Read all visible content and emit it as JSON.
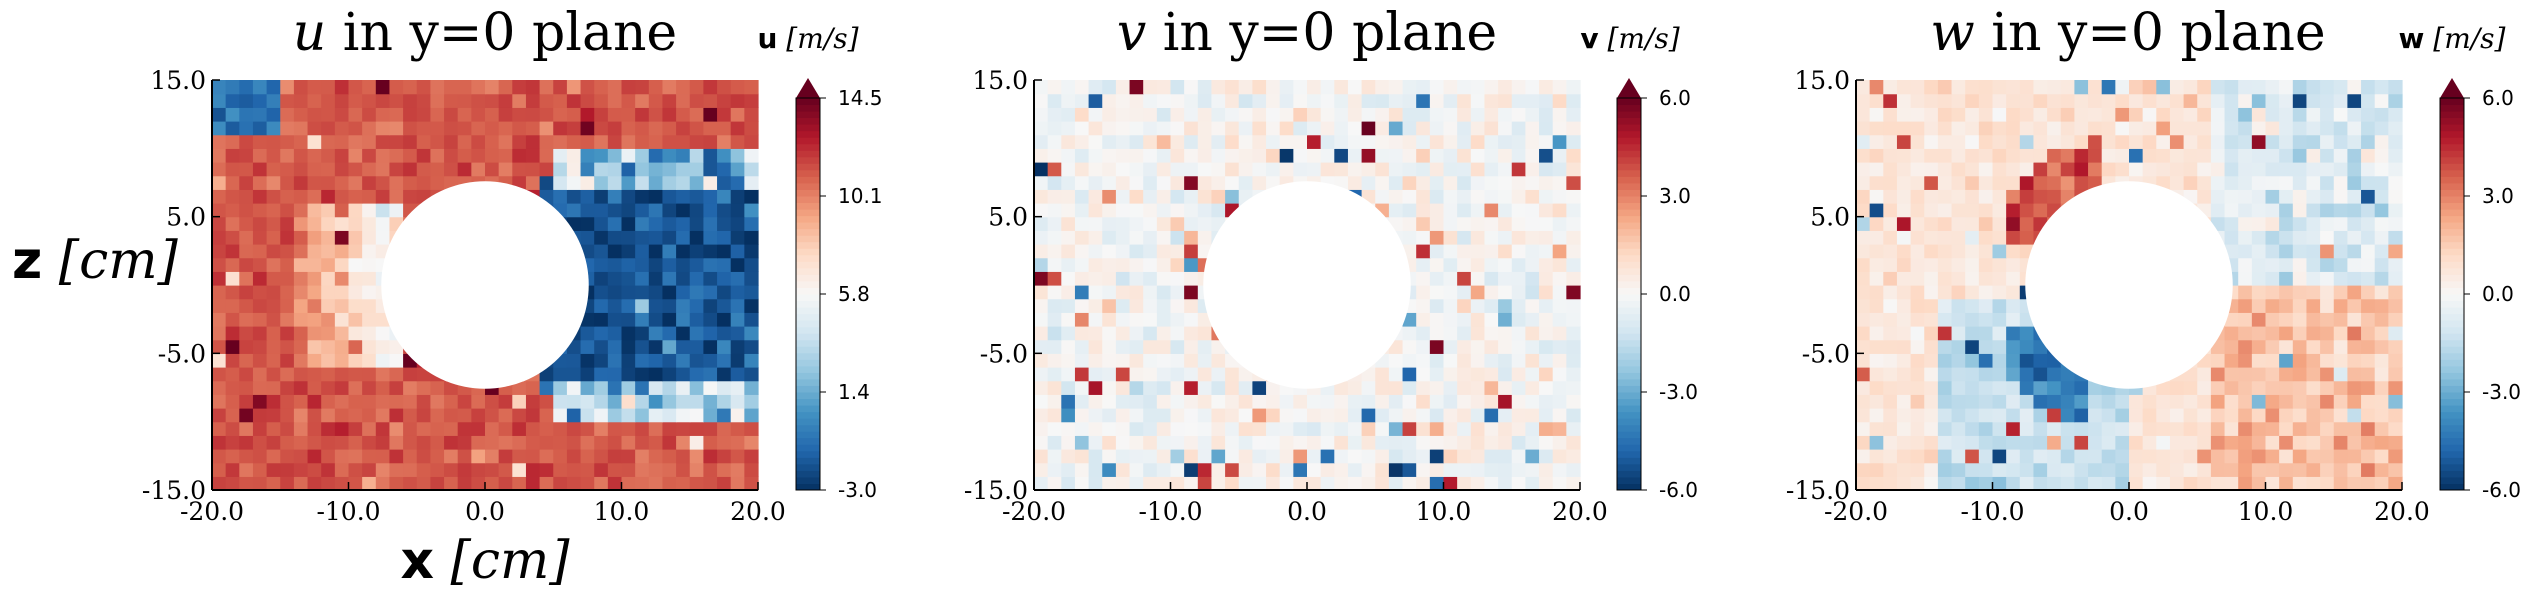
{
  "chart_data": [
    {
      "type": "heatmap",
      "title_var": "u",
      "title_rest": " in y=0 plane",
      "colorbar_label_bold": "u",
      "colorbar_label_unit": "[m/s]",
      "xlabel_bold": "x",
      "xlabel_unit": "[cm]",
      "ylabel_bold": "z",
      "ylabel_unit": "[cm]",
      "xlim": [
        -20,
        20
      ],
      "ylim": [
        -15,
        15
      ],
      "xticks": [
        "-20.0",
        "-10.0",
        "0.0",
        "10.0",
        "20.0"
      ],
      "yticks": [
        "-15.0",
        "-5.0",
        "5.0",
        "15.0"
      ],
      "clim": [
        -3.0,
        14.5
      ],
      "cbar_ticks": [
        "-3.0",
        "1.4",
        "5.8",
        "10.1",
        "14.5"
      ],
      "cylinder": {
        "x": 0,
        "z": 0,
        "r": 7.6
      },
      "grid": {
        "nx": 40,
        "nz": 30
      },
      "field": "u"
    },
    {
      "type": "heatmap",
      "title_var": "v",
      "title_rest": " in y=0 plane",
      "colorbar_label_bold": "v",
      "colorbar_label_unit": "[m/s]",
      "xlim": [
        -20,
        20
      ],
      "ylim": [
        -15,
        15
      ],
      "xticks": [
        "-20.0",
        "-10.0",
        "0.0",
        "10.0",
        "20.0"
      ],
      "yticks": [
        "-15.0",
        "-5.0",
        "5.0",
        "15.0"
      ],
      "clim": [
        -6.0,
        6.0
      ],
      "cbar_ticks": [
        "-6.0",
        "-3.0",
        "0.0",
        "3.0",
        "6.0"
      ],
      "cylinder": {
        "x": 0,
        "z": 0,
        "r": 7.6
      },
      "grid": {
        "nx": 40,
        "nz": 30
      },
      "field": "v"
    },
    {
      "type": "heatmap",
      "title_var": "w",
      "title_rest": " in y=0 plane",
      "colorbar_label_bold": "w",
      "colorbar_label_unit": "[m/s]",
      "xlim": [
        -20,
        20
      ],
      "ylim": [
        -15,
        15
      ],
      "xticks": [
        "-20.0",
        "-10.0",
        "0.0",
        "10.0",
        "20.0"
      ],
      "yticks": [
        "-15.0",
        "-5.0",
        "5.0",
        "15.0"
      ],
      "clim": [
        -6.0,
        6.0
      ],
      "cbar_ticks": [
        "-6.0",
        "-3.0",
        "0.0",
        "3.0",
        "6.0"
      ],
      "cylinder": {
        "x": 0,
        "z": 0,
        "r": 7.6
      },
      "grid": {
        "nx": 40,
        "nz": 30
      },
      "field": "w"
    }
  ],
  "colors": {
    "colormap": [
      "#053061",
      "#2166ac",
      "#4393c3",
      "#92c5de",
      "#d1e5f0",
      "#f7f7f7",
      "#fddbc7",
      "#f4a582",
      "#d6604d",
      "#b2182b",
      "#67001f"
    ]
  }
}
